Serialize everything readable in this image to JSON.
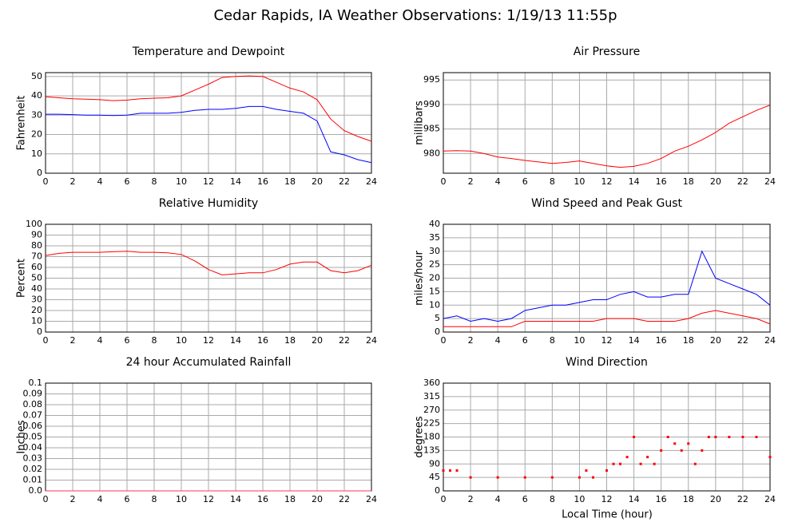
{
  "title": "Cedar Rapids, IA Weather Observations: 1/19/13 11:55p",
  "xlabel": "Local Time (hour)",
  "chart_data": [
    {
      "type": "line",
      "title": "Temperature and Dewpoint",
      "ylabel": "Fahrenheit",
      "x": [
        0,
        1,
        2,
        3,
        4,
        5,
        6,
        7,
        8,
        9,
        10,
        11,
        12,
        13,
        14,
        15,
        16,
        17,
        18,
        19,
        20,
        21,
        22,
        23,
        24
      ],
      "series": [
        {
          "color": "#ff0000",
          "values": [
            39.5,
            39,
            38.5,
            38.3,
            38,
            37.5,
            37.8,
            38.5,
            38.8,
            39,
            40,
            43,
            46,
            49.5,
            50,
            50.3,
            50,
            47,
            44,
            42,
            38,
            28,
            22,
            19,
            16.5
          ]
        },
        {
          "color": "#0000ff",
          "values": [
            30.5,
            30.5,
            30.3,
            30,
            30,
            29.8,
            30,
            31,
            31,
            31,
            31.5,
            32.5,
            33,
            33,
            33.5,
            34.5,
            34.5,
            33,
            32,
            31,
            27,
            11,
            9.5,
            7,
            5.5
          ]
        }
      ],
      "xlim": [
        0,
        24
      ],
      "xticks": [
        0,
        2,
        4,
        6,
        8,
        10,
        12,
        14,
        16,
        18,
        20,
        22,
        24
      ],
      "ylim": [
        0,
        52
      ],
      "yticks": [
        0,
        10,
        20,
        30,
        40,
        50
      ],
      "grid": true
    },
    {
      "type": "line",
      "title": "Air Pressure",
      "ylabel": "millibars",
      "x": [
        0,
        1,
        2,
        3,
        4,
        5,
        6,
        7,
        8,
        9,
        10,
        11,
        12,
        13,
        14,
        15,
        16,
        17,
        18,
        19,
        20,
        21,
        22,
        23,
        24
      ],
      "series": [
        {
          "color": "#ff0000",
          "values": [
            980.5,
            980.6,
            980.5,
            980,
            979.3,
            979,
            978.6,
            978.3,
            978,
            978.2,
            978.5,
            978,
            977.5,
            977.2,
            977.4,
            978,
            979,
            980.5,
            981.5,
            982.8,
            984.3,
            986.2,
            987.5,
            988.8,
            989.9
          ]
        }
      ],
      "xlim": [
        0,
        24
      ],
      "xticks": [
        0,
        2,
        4,
        6,
        8,
        10,
        12,
        14,
        16,
        18,
        20,
        22,
        24
      ],
      "ylim": [
        976,
        996.5
      ],
      "yticks": [
        980,
        985,
        990,
        995
      ],
      "grid": true
    },
    {
      "type": "line",
      "title": "Relative Humidity",
      "ylabel": "Percent",
      "x": [
        0,
        1,
        2,
        3,
        4,
        5,
        6,
        7,
        8,
        9,
        10,
        11,
        12,
        13,
        14,
        15,
        16,
        17,
        18,
        19,
        20,
        21,
        22,
        23,
        24
      ],
      "series": [
        {
          "color": "#ff0000",
          "values": [
            71,
            73,
            74,
            74,
            74,
            74.5,
            75,
            74,
            74,
            73.5,
            72,
            66,
            58,
            53,
            54,
            55,
            55,
            58,
            63,
            65,
            65,
            57,
            55,
            57,
            62
          ]
        }
      ],
      "xlim": [
        0,
        24
      ],
      "xticks": [
        0,
        2,
        4,
        6,
        8,
        10,
        12,
        14,
        16,
        18,
        20,
        22,
        24
      ],
      "ylim": [
        0,
        100
      ],
      "yticks": [
        0,
        10,
        20,
        30,
        40,
        50,
        60,
        70,
        80,
        90,
        100
      ],
      "grid": true
    },
    {
      "type": "line",
      "title": "Wind Speed and Peak Gust",
      "ylabel": "miles/hour",
      "x": [
        0,
        1,
        2,
        3,
        4,
        5,
        6,
        7,
        8,
        9,
        10,
        11,
        12,
        13,
        14,
        15,
        16,
        17,
        18,
        19,
        20,
        21,
        22,
        23,
        24
      ],
      "series": [
        {
          "color": "#0000ff",
          "values": [
            5,
            6,
            4,
            5,
            4,
            5,
            8,
            9,
            10,
            10,
            11,
            12,
            12,
            14,
            15,
            13,
            13,
            14,
            14,
            30,
            20,
            18,
            16,
            14,
            10
          ]
        },
        {
          "color": "#ff0000",
          "values": [
            2,
            2,
            2,
            2,
            2,
            2,
            4,
            4,
            4,
            4,
            4,
            4,
            5,
            5,
            5,
            4,
            4,
            4,
            5,
            7,
            8,
            7,
            6,
            5,
            3
          ]
        }
      ],
      "xlim": [
        0,
        24
      ],
      "xticks": [
        0,
        2,
        4,
        6,
        8,
        10,
        12,
        14,
        16,
        18,
        20,
        22,
        24
      ],
      "ylim": [
        0,
        40
      ],
      "yticks": [
        0,
        5,
        10,
        15,
        20,
        25,
        30,
        35,
        40
      ],
      "grid": true
    },
    {
      "type": "line",
      "title": "24 hour Accumulated Rainfall",
      "ylabel": "Inches",
      "x": [
        0,
        24
      ],
      "series": [
        {
          "color": "#ff3366",
          "values": [
            0,
            0
          ]
        }
      ],
      "xlim": [
        0,
        24
      ],
      "xticks": [
        0,
        2,
        4,
        6,
        8,
        10,
        12,
        14,
        16,
        18,
        20,
        22,
        24
      ],
      "ylim": [
        0,
        0.1
      ],
      "yticks": [
        {
          "value": 0,
          "label": "0.0"
        },
        0.01,
        0.02,
        0.03,
        0.04,
        0.05,
        0.06,
        0.07,
        0.08,
        0.09,
        0.1
      ],
      "grid": true
    },
    {
      "type": "scatter",
      "title": "Wind Direction",
      "ylabel": "degrees",
      "x": [
        0,
        0.5,
        1,
        2,
        4,
        6,
        8,
        10,
        10.5,
        11,
        12,
        12.5,
        13,
        13.5,
        14,
        14.5,
        15,
        15.5,
        16,
        16.5,
        17,
        17.5,
        18,
        18.5,
        19,
        19.5,
        20,
        21,
        22,
        23,
        24
      ],
      "series": [
        {
          "color": "#ff0000",
          "values": [
            68,
            68,
            68,
            45,
            45,
            45,
            45,
            45,
            68,
            45,
            68,
            90,
            90,
            113,
            180,
            90,
            113,
            90,
            135,
            180,
            158,
            135,
            158,
            90,
            135,
            180,
            180,
            180,
            180,
            180,
            113
          ]
        }
      ],
      "xlim": [
        0,
        24
      ],
      "xticks": [
        0,
        2,
        4,
        6,
        8,
        10,
        12,
        14,
        16,
        18,
        20,
        22,
        24
      ],
      "ylim": [
        0,
        360
      ],
      "yticks": [
        0,
        45,
        90,
        135,
        180,
        225,
        270,
        315,
        360
      ],
      "grid": true
    }
  ]
}
